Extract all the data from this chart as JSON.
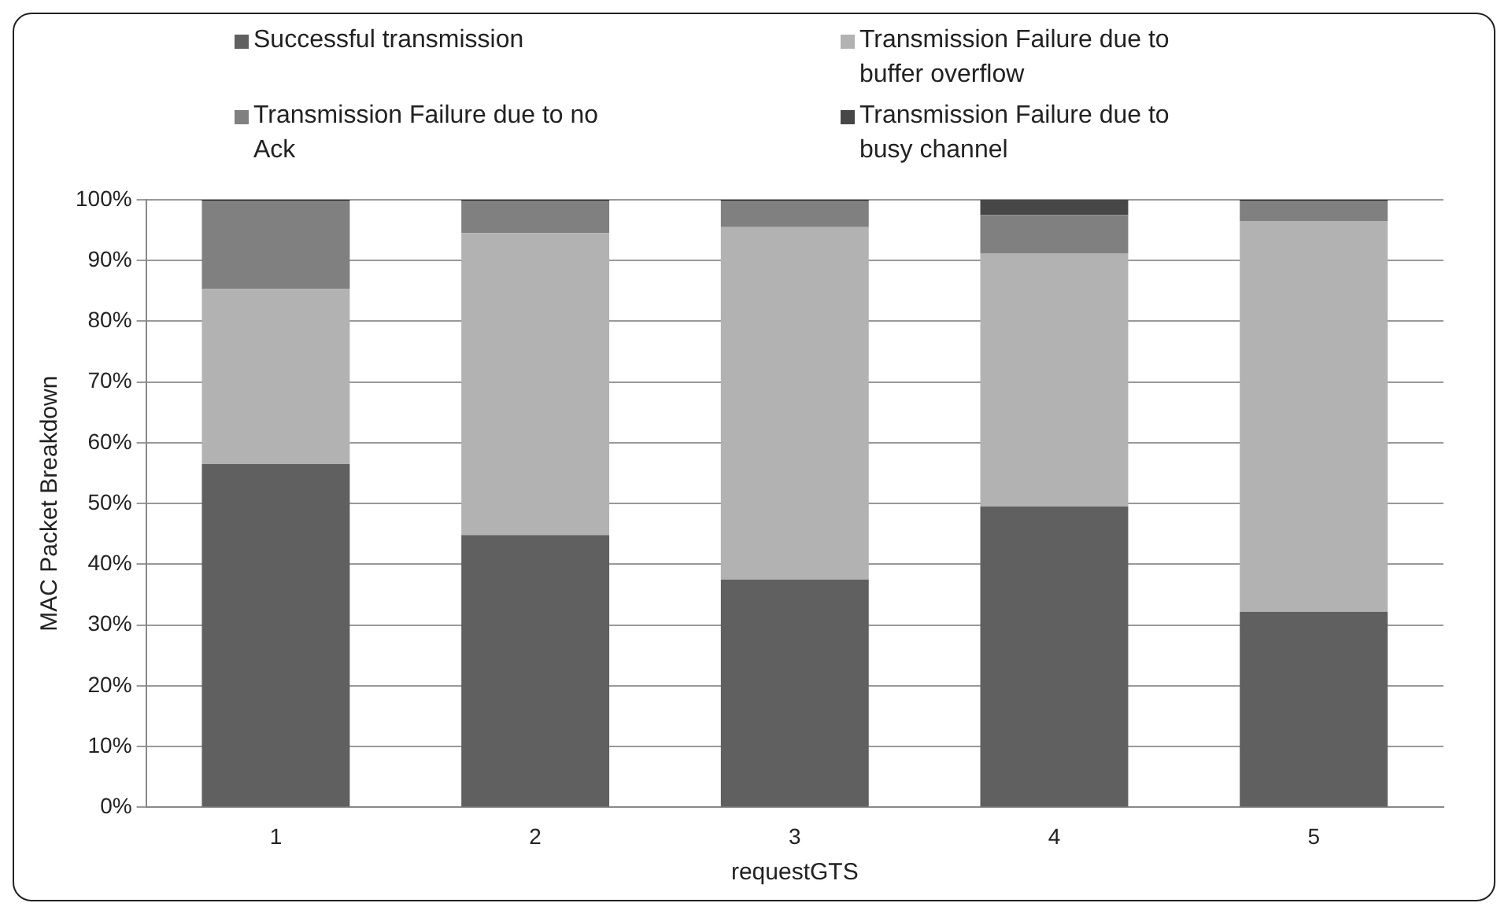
{
  "chart_data": {
    "type": "bar",
    "stacked": true,
    "xlabel": "requestGTS",
    "ylabel": "MAC Packet Breakdown",
    "categories": [
      "1",
      "2",
      "3",
      "4",
      "5"
    ],
    "series": [
      {
        "name": "Successful transmission",
        "color": "#606060",
        "values": [
          56.5,
          44.8,
          37.5,
          49.5,
          32.2
        ]
      },
      {
        "name": "Transmission Failure due to buffer overflow",
        "color": "#b2b2b2",
        "values": [
          28.8,
          49.7,
          58,
          41.7,
          64.3
        ]
      },
      {
        "name": "Transmission Failure due to no Ack",
        "color": "#808080",
        "values": [
          14.4,
          5.2,
          4.2,
          6.3,
          3.2
        ]
      },
      {
        "name": "Transmission Failure due to busy channel",
        "color": "#474747",
        "values": [
          0.3,
          0.3,
          0.3,
          2.5,
          0.3
        ]
      }
    ],
    "ylim": [
      0,
      100
    ],
    "yticks": [
      {
        "value": 0,
        "label": "0%"
      },
      {
        "value": 10,
        "label": "10%"
      },
      {
        "value": 20,
        "label": "20%"
      },
      {
        "value": 30,
        "label": "30%"
      },
      {
        "value": 40,
        "label": "40%"
      },
      {
        "value": 50,
        "label": "50%"
      },
      {
        "value": 60,
        "label": "60%"
      },
      {
        "value": 70,
        "label": "70%"
      },
      {
        "value": 80,
        "label": "80%"
      },
      {
        "value": 90,
        "label": "90%"
      },
      {
        "value": 100,
        "label": "100%"
      }
    ],
    "grid": "y",
    "legend": "top"
  }
}
